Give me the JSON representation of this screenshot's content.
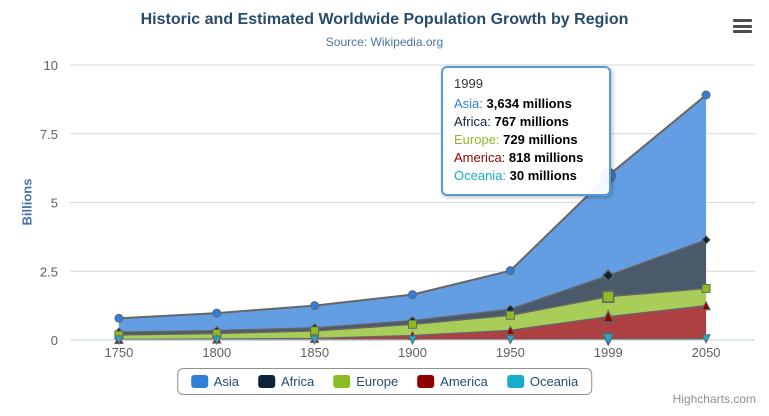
{
  "chart_data": {
    "type": "area",
    "stacking": "normal",
    "title": "Historic and Estimated Worldwide Population Growth by Region",
    "subtitle": "Source: Wikipedia.org",
    "categories": [
      "1750",
      "1800",
      "1850",
      "1900",
      "1950",
      "1999",
      "2050"
    ],
    "series": [
      {
        "name": "Asia",
        "color": "#2f7ed8",
        "marker": "circle",
        "values_millions": [
          502,
          635,
          809,
          947,
          1402,
          3634,
          5268
        ]
      },
      {
        "name": "Africa",
        "color": "#0d233a",
        "marker": "diamond",
        "values_millions": [
          106,
          107,
          111,
          133,
          221,
          767,
          1766
        ]
      },
      {
        "name": "Europe",
        "color": "#8bbc21",
        "marker": "square",
        "values_millions": [
          163,
          203,
          276,
          408,
          547,
          729,
          628
        ]
      },
      {
        "name": "America",
        "color": "#910000",
        "marker": "triangle",
        "values_millions": [
          18,
          31,
          54,
          156,
          339,
          818,
          1201
        ]
      },
      {
        "name": "Oceania",
        "color": "#1aadce",
        "marker": "triangle-down",
        "values_millions": [
          2,
          2,
          2,
          6,
          13,
          30,
          46
        ]
      }
    ],
    "xlabel": "",
    "ylabel": "Billions",
    "yticks": [
      0,
      2.5,
      5,
      7.5,
      10
    ],
    "ylim": [
      0,
      10
    ],
    "units_note": "y axis in billions, series values in millions",
    "grid": true,
    "legend_position": "bottom",
    "hover_index": 5,
    "line_color": "#666666",
    "grid_color": "#d8d8d8",
    "axis_line_color": "#c0d0e0",
    "label_color": "#606060",
    "fill_opacity": 0.75
  },
  "tooltip": {
    "header": "1999",
    "rows": [
      {
        "label": "Asia:",
        "value": "3,634 millions"
      },
      {
        "label": "Africa:",
        "value": "767 millions"
      },
      {
        "label": "Europe:",
        "value": "729 millions"
      },
      {
        "label": "America:",
        "value": "818 millions"
      },
      {
        "label": "Oceania:",
        "value": "30 millions"
      }
    ]
  },
  "icons": {
    "context_menu": "hamburger-icon"
  },
  "credits": {
    "label": "Highcharts.com"
  }
}
